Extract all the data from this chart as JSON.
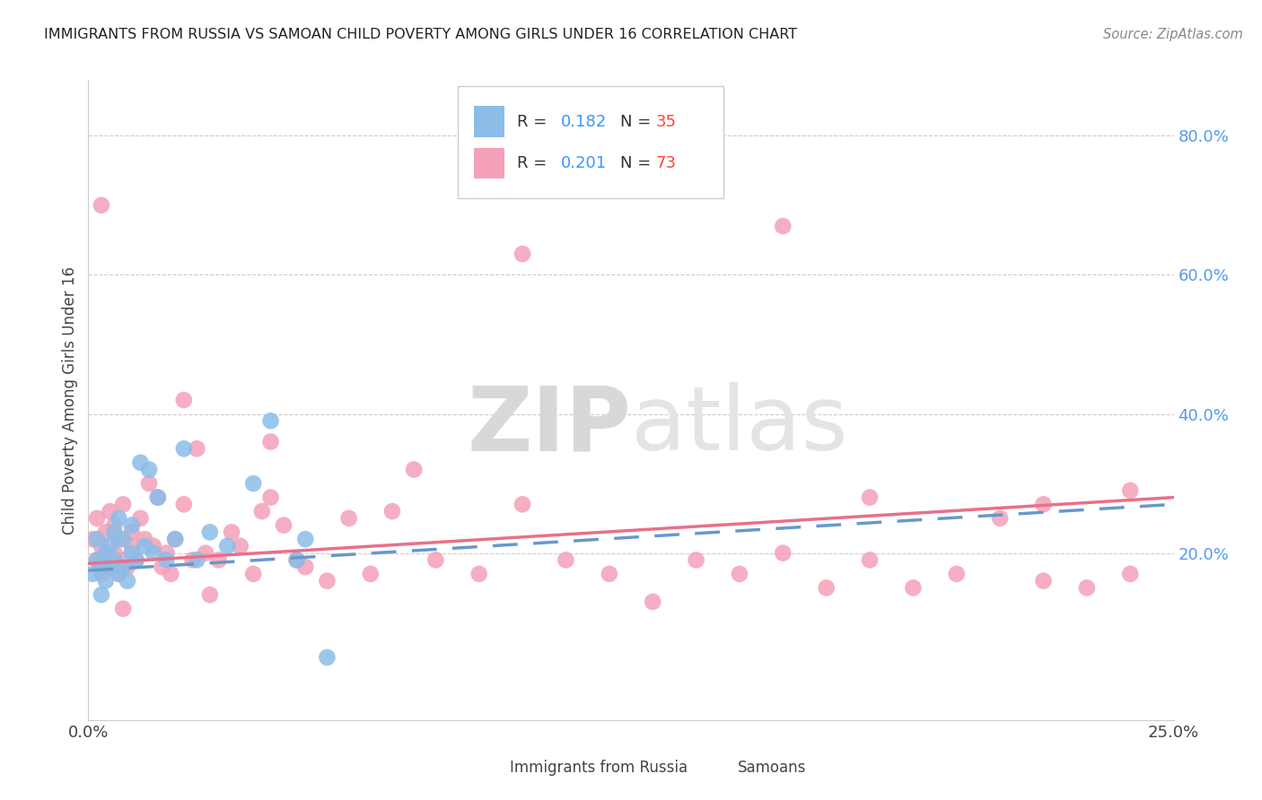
{
  "title": "IMMIGRANTS FROM RUSSIA VS SAMOAN CHILD POVERTY AMONG GIRLS UNDER 16 CORRELATION CHART",
  "source": "Source: ZipAtlas.com",
  "ylabel": "Child Poverty Among Girls Under 16",
  "legend_r1": "R = 0.182",
  "legend_n1": "N = 35",
  "legend_r2": "R = 0.201",
  "legend_n2": "N = 73",
  "legend_label1": "Immigrants from Russia",
  "legend_label2": "Samoans",
  "color_russia": "#8BBDE8",
  "color_samoan": "#F4A0B8",
  "color_russia_line": "#6699CC",
  "color_samoan_line": "#E8708A",
  "watermark_zip": "ZIP",
  "watermark_atlas": "atlas",
  "xlim": [
    0.0,
    0.25
  ],
  "ylim": [
    -0.04,
    0.88
  ],
  "yticks": [
    0.2,
    0.4,
    0.6,
    0.8
  ],
  "ytick_labels": [
    "20.0%",
    "40.0%",
    "60.0%",
    "80.0%"
  ],
  "russia_x": [
    0.001,
    0.002,
    0.002,
    0.003,
    0.003,
    0.004,
    0.004,
    0.005,
    0.005,
    0.006,
    0.006,
    0.007,
    0.007,
    0.008,
    0.008,
    0.009,
    0.01,
    0.01,
    0.011,
    0.012,
    0.013,
    0.014,
    0.015,
    0.016,
    0.018,
    0.02,
    0.022,
    0.025,
    0.028,
    0.032,
    0.038,
    0.042,
    0.048,
    0.05,
    0.055
  ],
  "russia_y": [
    0.17,
    0.22,
    0.19,
    0.18,
    0.14,
    0.2,
    0.16,
    0.21,
    0.18,
    0.19,
    0.23,
    0.17,
    0.25,
    0.18,
    0.22,
    0.16,
    0.2,
    0.24,
    0.19,
    0.33,
    0.21,
    0.32,
    0.2,
    0.28,
    0.19,
    0.22,
    0.35,
    0.19,
    0.23,
    0.21,
    0.3,
    0.39,
    0.19,
    0.22,
    0.05
  ],
  "samoan_x": [
    0.001,
    0.002,
    0.002,
    0.003,
    0.003,
    0.004,
    0.004,
    0.005,
    0.005,
    0.006,
    0.006,
    0.007,
    0.007,
    0.008,
    0.008,
    0.009,
    0.01,
    0.01,
    0.011,
    0.012,
    0.013,
    0.014,
    0.015,
    0.016,
    0.017,
    0.018,
    0.019,
    0.02,
    0.022,
    0.024,
    0.025,
    0.027,
    0.028,
    0.03,
    0.033,
    0.035,
    0.038,
    0.04,
    0.042,
    0.045,
    0.048,
    0.05,
    0.055,
    0.06,
    0.065,
    0.07,
    0.075,
    0.08,
    0.09,
    0.1,
    0.11,
    0.12,
    0.13,
    0.14,
    0.15,
    0.16,
    0.17,
    0.18,
    0.19,
    0.2,
    0.21,
    0.22,
    0.23,
    0.24,
    0.003,
    0.008,
    0.022,
    0.042,
    0.1,
    0.16,
    0.18,
    0.22,
    0.24
  ],
  "samoan_y": [
    0.22,
    0.19,
    0.25,
    0.21,
    0.17,
    0.2,
    0.23,
    0.18,
    0.26,
    0.2,
    0.24,
    0.17,
    0.22,
    0.19,
    0.27,
    0.18,
    0.21,
    0.23,
    0.19,
    0.25,
    0.22,
    0.3,
    0.21,
    0.28,
    0.18,
    0.2,
    0.17,
    0.22,
    0.27,
    0.19,
    0.35,
    0.2,
    0.14,
    0.19,
    0.23,
    0.21,
    0.17,
    0.26,
    0.28,
    0.24,
    0.19,
    0.18,
    0.16,
    0.25,
    0.17,
    0.26,
    0.32,
    0.19,
    0.17,
    0.27,
    0.19,
    0.17,
    0.13,
    0.19,
    0.17,
    0.2,
    0.15,
    0.28,
    0.15,
    0.17,
    0.25,
    0.16,
    0.15,
    0.29,
    0.7,
    0.12,
    0.42,
    0.36,
    0.63,
    0.67,
    0.19,
    0.27,
    0.17
  ]
}
